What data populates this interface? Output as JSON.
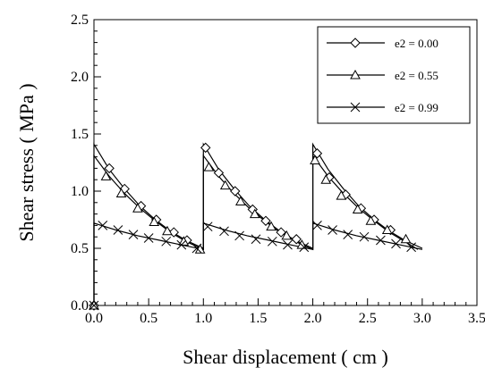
{
  "chart_data": {
    "type": "line",
    "xlabel": "Shear  displacement ( cm )",
    "ylabel": "Shear  stress ( MPa )",
    "xlim": [
      0.0,
      3.5
    ],
    "ylim": [
      0.0,
      2.5
    ],
    "xticks": [
      "0.0",
      "0.5",
      "1.0",
      "1.5",
      "2.0",
      "2.5",
      "3.0",
      "3.5"
    ],
    "yticks": [
      "0.0",
      "0.5",
      "1.0",
      "1.5",
      "2.0",
      "2.5"
    ],
    "grid": false,
    "legend_position": "top-right",
    "series": [
      {
        "name": "e2 = 0.00",
        "marker": "diamond",
        "points": [
          [
            0.0,
            0.0
          ],
          [
            0.0,
            1.41
          ],
          [
            0.14,
            1.19
          ],
          [
            0.28,
            1.02
          ],
          [
            0.42,
            0.87
          ],
          [
            0.56,
            0.75
          ],
          [
            0.7,
            0.65
          ],
          [
            0.84,
            0.57
          ],
          [
            1.0,
            0.5
          ],
          [
            1.0,
            1.41
          ],
          [
            1.14,
            1.19
          ],
          [
            1.28,
            1.02
          ],
          [
            1.42,
            0.87
          ],
          [
            1.56,
            0.75
          ],
          [
            1.7,
            0.65
          ],
          [
            1.84,
            0.57
          ],
          [
            2.0,
            0.5
          ],
          [
            2.0,
            1.41
          ],
          [
            2.14,
            1.19
          ],
          [
            2.28,
            1.02
          ],
          [
            2.42,
            0.87
          ],
          [
            2.56,
            0.75
          ],
          [
            2.7,
            0.65
          ],
          [
            2.84,
            0.57
          ],
          [
            3.0,
            0.5
          ]
        ],
        "marker_points": [
          [
            0.0,
            0.0
          ],
          [
            0.14,
            1.2
          ],
          [
            0.28,
            1.02
          ],
          [
            0.43,
            0.87
          ],
          [
            0.57,
            0.75
          ],
          [
            0.73,
            0.64
          ],
          [
            0.85,
            0.57
          ],
          [
            1.02,
            1.38
          ],
          [
            1.14,
            1.16
          ],
          [
            1.29,
            1.0
          ],
          [
            1.45,
            0.84
          ],
          [
            1.57,
            0.74
          ],
          [
            1.71,
            0.64
          ],
          [
            1.85,
            0.58
          ],
          [
            2.04,
            1.33
          ],
          [
            2.15,
            1.12
          ],
          [
            2.3,
            0.97
          ],
          [
            2.44,
            0.85
          ],
          [
            2.56,
            0.75
          ],
          [
            2.71,
            0.66
          ]
        ]
      },
      {
        "name": "e2 = 0.55",
        "marker": "triangle",
        "points": [
          [
            0.0,
            0.0
          ],
          [
            0.0,
            1.31
          ],
          [
            0.14,
            1.13
          ],
          [
            0.28,
            0.98
          ],
          [
            0.42,
            0.85
          ],
          [
            0.56,
            0.74
          ],
          [
            0.7,
            0.64
          ],
          [
            0.84,
            0.56
          ],
          [
            1.0,
            0.49
          ],
          [
            1.0,
            1.31
          ],
          [
            1.14,
            1.13
          ],
          [
            1.28,
            0.98
          ],
          [
            1.42,
            0.85
          ],
          [
            1.56,
            0.74
          ],
          [
            1.7,
            0.64
          ],
          [
            1.84,
            0.56
          ],
          [
            2.0,
            0.49
          ],
          [
            2.0,
            1.31
          ],
          [
            2.14,
            1.13
          ],
          [
            2.28,
            0.98
          ],
          [
            2.42,
            0.85
          ],
          [
            2.56,
            0.74
          ],
          [
            2.7,
            0.64
          ],
          [
            2.84,
            0.56
          ],
          [
            2.96,
            0.49
          ]
        ],
        "marker_points": [
          [
            0.0,
            0.0
          ],
          [
            0.11,
            1.13
          ],
          [
            0.25,
            0.98
          ],
          [
            0.4,
            0.85
          ],
          [
            0.55,
            0.73
          ],
          [
            0.67,
            0.65
          ],
          [
            0.82,
            0.56
          ],
          [
            0.97,
            0.49
          ],
          [
            1.05,
            1.21
          ],
          [
            1.2,
            1.05
          ],
          [
            1.34,
            0.91
          ],
          [
            1.47,
            0.8
          ],
          [
            1.62,
            0.69
          ],
          [
            1.76,
            0.61
          ],
          [
            1.9,
            0.53
          ],
          [
            2.02,
            1.27
          ],
          [
            2.12,
            1.1
          ],
          [
            2.26,
            0.96
          ],
          [
            2.41,
            0.84
          ],
          [
            2.53,
            0.74
          ],
          [
            2.68,
            0.66
          ],
          [
            2.85,
            0.58
          ]
        ]
      },
      {
        "name": "e2 = 0.99",
        "marker": "cross",
        "points": [
          [
            0.0,
            0.0
          ],
          [
            0.0,
            0.72
          ],
          [
            0.2,
            0.66
          ],
          [
            0.4,
            0.61
          ],
          [
            0.6,
            0.57
          ],
          [
            0.8,
            0.53
          ],
          [
            1.0,
            0.49
          ],
          [
            1.0,
            0.72
          ],
          [
            1.2,
            0.66
          ],
          [
            1.4,
            0.61
          ],
          [
            1.6,
            0.57
          ],
          [
            1.8,
            0.53
          ],
          [
            2.0,
            0.49
          ],
          [
            2.0,
            0.72
          ],
          [
            2.2,
            0.66
          ],
          [
            2.4,
            0.61
          ],
          [
            2.6,
            0.57
          ],
          [
            2.8,
            0.53
          ],
          [
            3.0,
            0.49
          ]
        ],
        "marker_points": [
          [
            0.0,
            0.0
          ],
          [
            0.08,
            0.7
          ],
          [
            0.22,
            0.66
          ],
          [
            0.36,
            0.62
          ],
          [
            0.5,
            0.59
          ],
          [
            0.66,
            0.56
          ],
          [
            0.8,
            0.53
          ],
          [
            0.94,
            0.5
          ],
          [
            1.04,
            0.69
          ],
          [
            1.19,
            0.65
          ],
          [
            1.33,
            0.61
          ],
          [
            1.48,
            0.58
          ],
          [
            1.63,
            0.56
          ],
          [
            1.77,
            0.53
          ],
          [
            1.92,
            0.51
          ],
          [
            2.04,
            0.7
          ],
          [
            2.18,
            0.66
          ],
          [
            2.32,
            0.62
          ],
          [
            2.47,
            0.6
          ],
          [
            2.62,
            0.57
          ],
          [
            2.76,
            0.54
          ],
          [
            2.9,
            0.51
          ]
        ]
      }
    ]
  }
}
